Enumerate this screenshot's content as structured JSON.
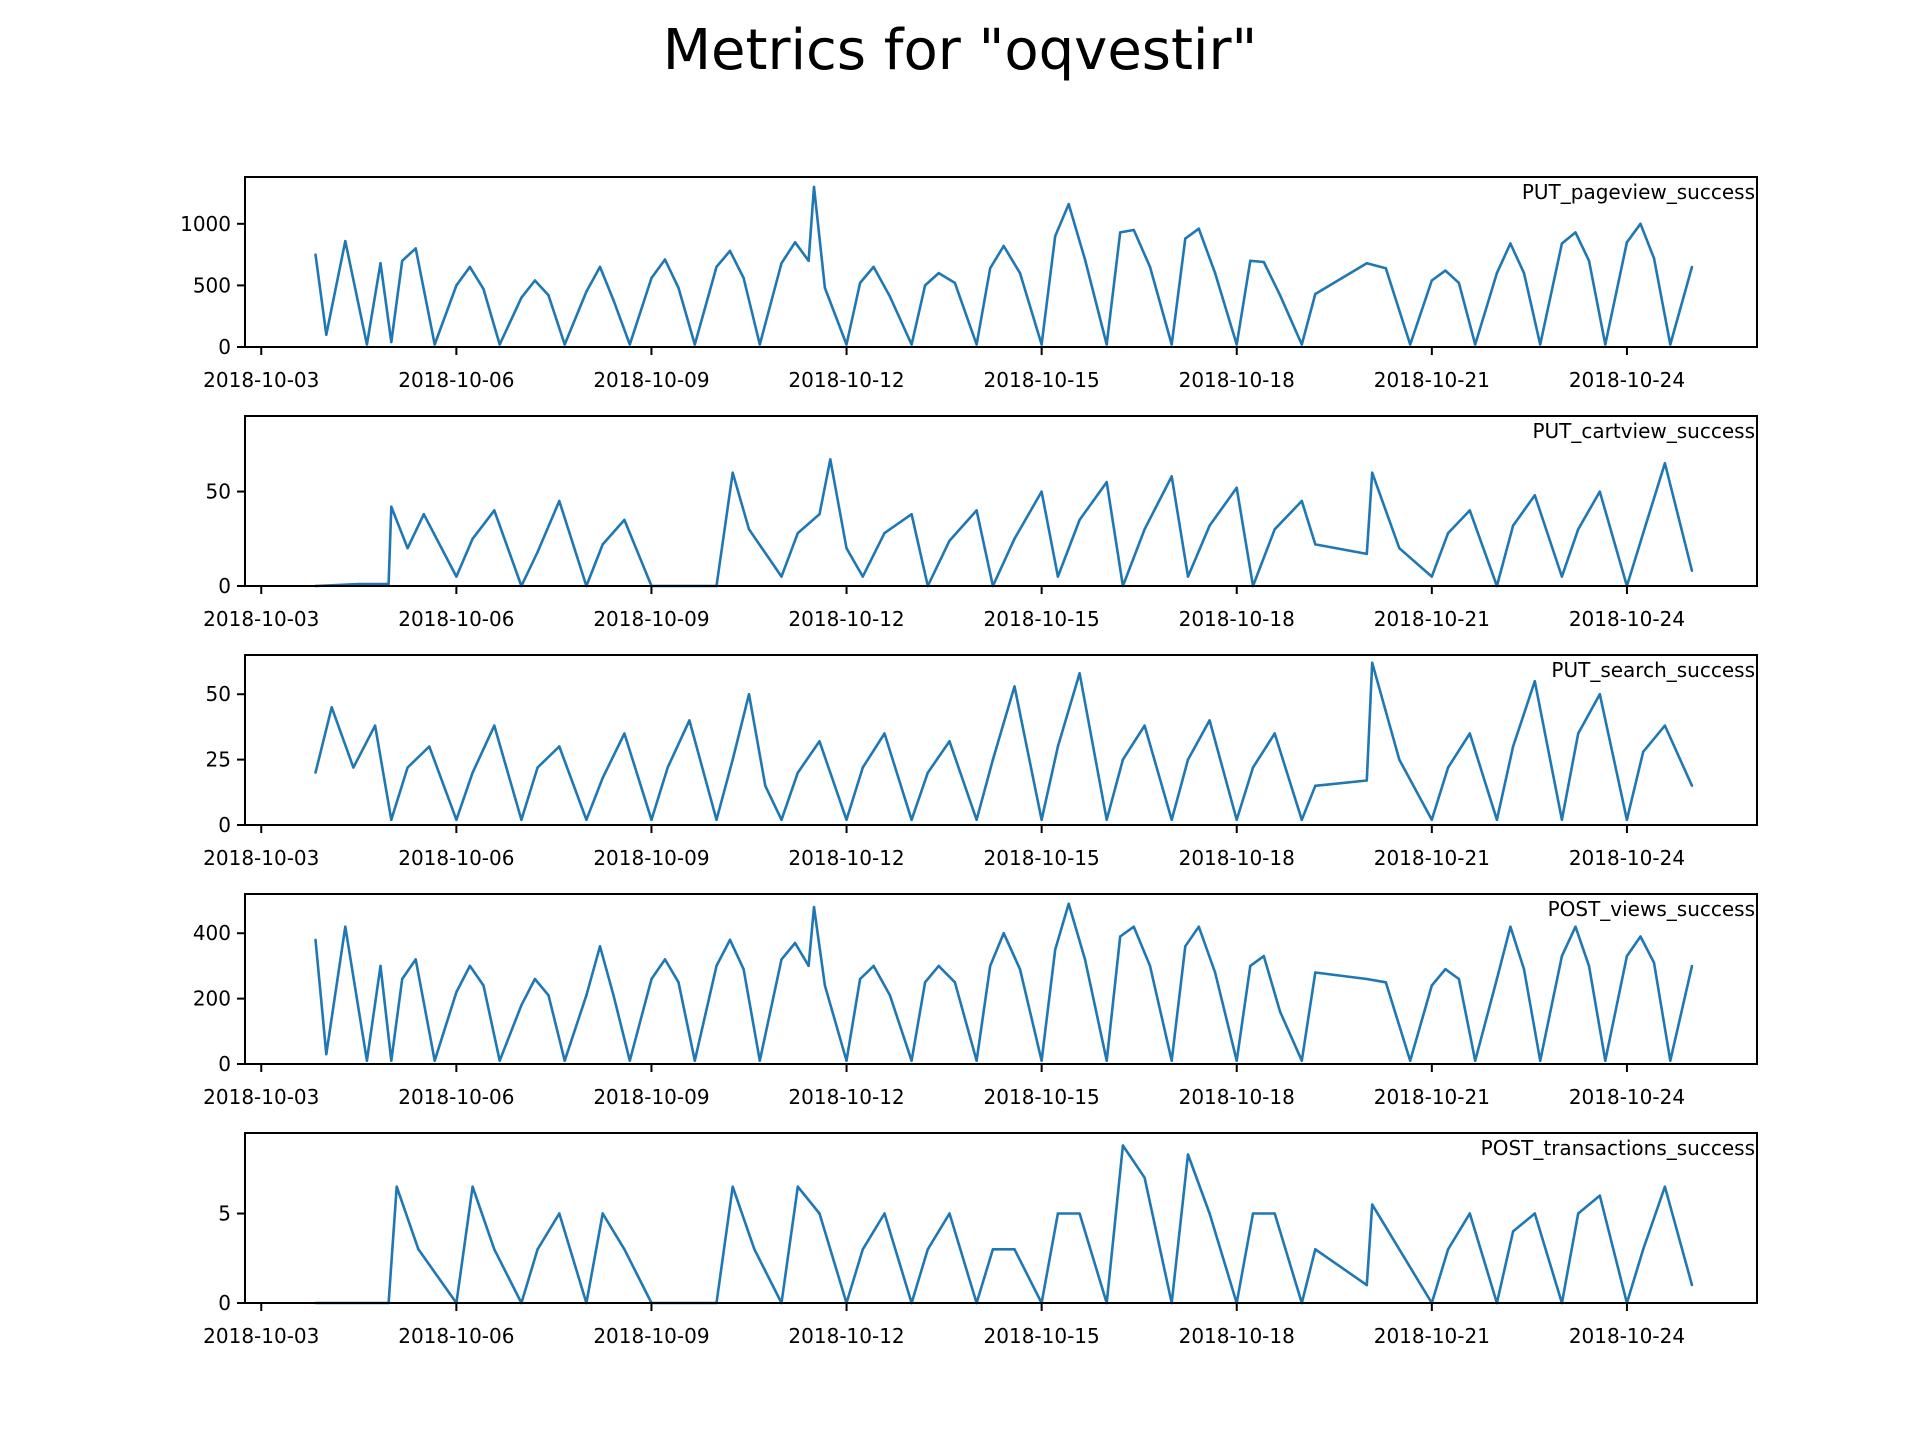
{
  "title": "Metrics for \"oqvestir\"",
  "x_ticks": [
    "2018-10-03",
    "2018-10-06",
    "2018-10-09",
    "2018-10-12",
    "2018-10-15",
    "2018-10-18",
    "2018-10-21",
    "2018-10-24"
  ],
  "colors": {
    "line": "#1f77b4",
    "axis": "#000000",
    "background": "#ffffff"
  },
  "chart_data": [
    {
      "type": "line",
      "series_label": "PUT_pageview_success",
      "x_type": "date",
      "x_start": "2018-10-03",
      "x_end": "2018-10-25",
      "x_ticks": [
        "2018-10-03",
        "2018-10-06",
        "2018-10-09",
        "2018-10-12",
        "2018-10-15",
        "2018-10-18",
        "2018-10-21",
        "2018-10-24"
      ],
      "y_ticks": [
        0,
        500,
        1000
      ],
      "ylim": [
        0,
        1380
      ],
      "xlim": [
        "2018-10-02T18:00",
        "2018-10-26T00:00"
      ],
      "x": [
        "2018-10-03T20:00",
        "2018-10-04T00:00",
        "2018-10-04T07:00",
        "2018-10-04T15:00",
        "2018-10-04T20:00",
        "2018-10-05T00:00",
        "2018-10-05T04:00",
        "2018-10-05T09:00",
        "2018-10-05T16:00",
        "2018-10-06T00:00",
        "2018-10-06T05:00",
        "2018-10-06T10:00",
        "2018-10-06T16:00",
        "2018-10-07T00:00",
        "2018-10-07T05:00",
        "2018-10-07T10:00",
        "2018-10-07T16:00",
        "2018-10-08T00:00",
        "2018-10-08T05:00",
        "2018-10-08T10:00",
        "2018-10-08T16:00",
        "2018-10-09T00:00",
        "2018-10-09T05:00",
        "2018-10-09T10:00",
        "2018-10-09T16:00",
        "2018-10-10T00:00",
        "2018-10-10T05:00",
        "2018-10-10T10:00",
        "2018-10-10T16:00",
        "2018-10-11T00:00",
        "2018-10-11T05:00",
        "2018-10-11T10:00",
        "2018-10-11T12:00",
        "2018-10-11T16:00",
        "2018-10-12T00:00",
        "2018-10-12T05:00",
        "2018-10-12T10:00",
        "2018-10-12T16:00",
        "2018-10-13T00:00",
        "2018-10-13T05:00",
        "2018-10-13T10:00",
        "2018-10-13T16:00",
        "2018-10-14T00:00",
        "2018-10-14T05:00",
        "2018-10-14T10:00",
        "2018-10-14T16:00",
        "2018-10-15T00:00",
        "2018-10-15T05:00",
        "2018-10-15T10:00",
        "2018-10-15T16:00",
        "2018-10-16T00:00",
        "2018-10-16T05:00",
        "2018-10-16T10:00",
        "2018-10-16T16:00",
        "2018-10-17T00:00",
        "2018-10-17T05:00",
        "2018-10-17T10:00",
        "2018-10-17T16:00",
        "2018-10-18T00:00",
        "2018-10-18T05:00",
        "2018-10-18T10:00",
        "2018-10-18T16:00",
        "2018-10-19T00:00",
        "2018-10-19T05:00",
        "2018-10-20T00:00",
        "2018-10-20T07:00",
        "2018-10-20T16:00",
        "2018-10-21T00:00",
        "2018-10-21T05:00",
        "2018-10-21T10:00",
        "2018-10-21T16:00",
        "2018-10-22T00:00",
        "2018-10-22T05:00",
        "2018-10-22T10:00",
        "2018-10-22T16:00",
        "2018-10-23T00:00",
        "2018-10-23T05:00",
        "2018-10-23T10:00",
        "2018-10-23T16:00",
        "2018-10-24T00:00",
        "2018-10-24T05:00",
        "2018-10-24T10:00",
        "2018-10-24T16:00",
        "2018-10-25T00:00"
      ],
      "y": [
        750,
        100,
        860,
        20,
        680,
        40,
        700,
        800,
        20,
        500,
        650,
        470,
        20,
        400,
        540,
        420,
        20,
        450,
        650,
        380,
        20,
        560,
        710,
        480,
        20,
        650,
        780,
        560,
        20,
        680,
        850,
        700,
        1300,
        480,
        20,
        520,
        650,
        410,
        20,
        500,
        600,
        520,
        20,
        640,
        820,
        600,
        20,
        900,
        1160,
        710,
        20,
        930,
        950,
        650,
        20,
        880,
        960,
        600,
        20,
        700,
        690,
        420,
        20,
        430,
        680,
        640,
        20,
        540,
        620,
        520,
        20,
        600,
        840,
        600,
        20,
        840,
        930,
        700,
        20,
        850,
        1000,
        720,
        20,
        650
      ]
    },
    {
      "type": "line",
      "series_label": "PUT_cartview_success",
      "x_type": "date",
      "x_start": "2018-10-03",
      "x_end": "2018-10-25",
      "x_ticks": [
        "2018-10-03",
        "2018-10-06",
        "2018-10-09",
        "2018-10-12",
        "2018-10-15",
        "2018-10-18",
        "2018-10-21",
        "2018-10-24"
      ],
      "y_ticks": [
        0,
        50
      ],
      "ylim": [
        0,
        90
      ],
      "xlim": [
        "2018-10-02T18:00",
        "2018-10-26T00:00"
      ],
      "x": [
        "2018-10-03T20:00",
        "2018-10-04T12:00",
        "2018-10-04T23:00",
        "2018-10-05T00:00",
        "2018-10-05T06:00",
        "2018-10-05T12:00",
        "2018-10-06T00:00",
        "2018-10-06T06:00",
        "2018-10-06T14:00",
        "2018-10-07T00:00",
        "2018-10-07T06:00",
        "2018-10-07T14:00",
        "2018-10-08T00:00",
        "2018-10-08T06:00",
        "2018-10-08T14:00",
        "2018-10-09T00:00",
        "2018-10-10T00:00",
        "2018-10-10T06:00",
        "2018-10-10T12:00",
        "2018-10-11T00:00",
        "2018-10-11T06:00",
        "2018-10-11T14:00",
        "2018-10-11T18:00",
        "2018-10-12T00:00",
        "2018-10-12T06:00",
        "2018-10-12T14:00",
        "2018-10-13T00:00",
        "2018-10-13T06:00",
        "2018-10-13T14:00",
        "2018-10-14T00:00",
        "2018-10-14T06:00",
        "2018-10-14T14:00",
        "2018-10-15T00:00",
        "2018-10-15T06:00",
        "2018-10-15T14:00",
        "2018-10-16T00:00",
        "2018-10-16T06:00",
        "2018-10-16T14:00",
        "2018-10-17T00:00",
        "2018-10-17T06:00",
        "2018-10-17T14:00",
        "2018-10-18T00:00",
        "2018-10-18T06:00",
        "2018-10-18T14:00",
        "2018-10-19T00:00",
        "2018-10-19T05:00",
        "2018-10-20T00:00",
        "2018-10-20T02:00",
        "2018-10-20T12:00",
        "2018-10-21T00:00",
        "2018-10-21T06:00",
        "2018-10-21T14:00",
        "2018-10-22T00:00",
        "2018-10-22T06:00",
        "2018-10-22T14:00",
        "2018-10-23T00:00",
        "2018-10-23T06:00",
        "2018-10-23T14:00",
        "2018-10-24T00:00",
        "2018-10-24T06:00",
        "2018-10-24T14:00",
        "2018-10-25T00:00"
      ],
      "y": [
        0,
        1,
        1,
        42,
        20,
        38,
        5,
        25,
        40,
        0,
        18,
        45,
        0,
        22,
        35,
        0,
        0,
        60,
        30,
        5,
        28,
        38,
        67,
        20,
        5,
        28,
        38,
        0,
        24,
        40,
        0,
        25,
        50,
        5,
        35,
        55,
        0,
        30,
        58,
        5,
        32,
        52,
        0,
        30,
        45,
        22,
        17,
        60,
        20,
        5,
        28,
        40,
        0,
        32,
        48,
        5,
        30,
        50,
        0,
        28,
        65,
        8
      ]
    },
    {
      "type": "line",
      "series_label": "PUT_search_success",
      "x_type": "date",
      "x_start": "2018-10-03",
      "x_end": "2018-10-25",
      "x_ticks": [
        "2018-10-03",
        "2018-10-06",
        "2018-10-09",
        "2018-10-12",
        "2018-10-15",
        "2018-10-18",
        "2018-10-21",
        "2018-10-24"
      ],
      "y_ticks": [
        0,
        25,
        50
      ],
      "ylim": [
        0,
        65
      ],
      "xlim": [
        "2018-10-02T18:00",
        "2018-10-26T00:00"
      ],
      "x": [
        "2018-10-03T20:00",
        "2018-10-04T02:00",
        "2018-10-04T10:00",
        "2018-10-04T18:00",
        "2018-10-05T00:00",
        "2018-10-05T06:00",
        "2018-10-05T14:00",
        "2018-10-06T00:00",
        "2018-10-06T06:00",
        "2018-10-06T14:00",
        "2018-10-07T00:00",
        "2018-10-07T06:00",
        "2018-10-07T14:00",
        "2018-10-08T00:00",
        "2018-10-08T06:00",
        "2018-10-08T14:00",
        "2018-10-09T00:00",
        "2018-10-09T06:00",
        "2018-10-09T14:00",
        "2018-10-10T00:00",
        "2018-10-10T06:00",
        "2018-10-10T12:00",
        "2018-10-10T18:00",
        "2018-10-11T00:00",
        "2018-10-11T06:00",
        "2018-10-11T14:00",
        "2018-10-12T00:00",
        "2018-10-12T06:00",
        "2018-10-12T14:00",
        "2018-10-13T00:00",
        "2018-10-13T06:00",
        "2018-10-13T14:00",
        "2018-10-14T00:00",
        "2018-10-14T06:00",
        "2018-10-14T14:00",
        "2018-10-15T00:00",
        "2018-10-15T06:00",
        "2018-10-15T14:00",
        "2018-10-16T00:00",
        "2018-10-16T06:00",
        "2018-10-16T14:00",
        "2018-10-17T00:00",
        "2018-10-17T06:00",
        "2018-10-17T14:00",
        "2018-10-18T00:00",
        "2018-10-18T06:00",
        "2018-10-18T14:00",
        "2018-10-19T00:00",
        "2018-10-19T05:00",
        "2018-10-20T00:00",
        "2018-10-20T02:00",
        "2018-10-20T12:00",
        "2018-10-21T00:00",
        "2018-10-21T06:00",
        "2018-10-21T14:00",
        "2018-10-22T00:00",
        "2018-10-22T06:00",
        "2018-10-22T14:00",
        "2018-10-23T00:00",
        "2018-10-23T06:00",
        "2018-10-23T14:00",
        "2018-10-24T00:00",
        "2018-10-24T06:00",
        "2018-10-24T14:00",
        "2018-10-25T00:00"
      ],
      "y": [
        20,
        45,
        22,
        38,
        2,
        22,
        30,
        2,
        20,
        38,
        2,
        22,
        30,
        2,
        18,
        35,
        2,
        22,
        40,
        2,
        25,
        50,
        15,
        2,
        20,
        32,
        2,
        22,
        35,
        2,
        20,
        32,
        2,
        25,
        53,
        2,
        30,
        58,
        2,
        25,
        38,
        2,
        25,
        40,
        2,
        22,
        35,
        2,
        15,
        17,
        62,
        25,
        2,
        22,
        35,
        2,
        30,
        55,
        2,
        35,
        50,
        2,
        28,
        38,
        15
      ]
    },
    {
      "type": "line",
      "series_label": "POST_views_success",
      "x_type": "date",
      "x_start": "2018-10-03",
      "x_end": "2018-10-25",
      "x_ticks": [
        "2018-10-03",
        "2018-10-06",
        "2018-10-09",
        "2018-10-12",
        "2018-10-15",
        "2018-10-18",
        "2018-10-21",
        "2018-10-24"
      ],
      "y_ticks": [
        0,
        200,
        400
      ],
      "ylim": [
        0,
        520
      ],
      "xlim": [
        "2018-10-02T18:00",
        "2018-10-26T00:00"
      ],
      "x": [
        "2018-10-03T20:00",
        "2018-10-04T00:00",
        "2018-10-04T07:00",
        "2018-10-04T15:00",
        "2018-10-04T20:00",
        "2018-10-05T00:00",
        "2018-10-05T04:00",
        "2018-10-05T09:00",
        "2018-10-05T16:00",
        "2018-10-06T00:00",
        "2018-10-06T05:00",
        "2018-10-06T10:00",
        "2018-10-06T16:00",
        "2018-10-07T00:00",
        "2018-10-07T05:00",
        "2018-10-07T10:00",
        "2018-10-07T16:00",
        "2018-10-08T00:00",
        "2018-10-08T05:00",
        "2018-10-08T10:00",
        "2018-10-08T16:00",
        "2018-10-09T00:00",
        "2018-10-09T05:00",
        "2018-10-09T10:00",
        "2018-10-09T16:00",
        "2018-10-10T00:00",
        "2018-10-10T05:00",
        "2018-10-10T10:00",
        "2018-10-10T16:00",
        "2018-10-11T00:00",
        "2018-10-11T05:00",
        "2018-10-11T10:00",
        "2018-10-11T12:00",
        "2018-10-11T16:00",
        "2018-10-12T00:00",
        "2018-10-12T05:00",
        "2018-10-12T10:00",
        "2018-10-12T16:00",
        "2018-10-13T00:00",
        "2018-10-13T05:00",
        "2018-10-13T10:00",
        "2018-10-13T16:00",
        "2018-10-14T00:00",
        "2018-10-14T05:00",
        "2018-10-14T10:00",
        "2018-10-14T16:00",
        "2018-10-15T00:00",
        "2018-10-15T05:00",
        "2018-10-15T10:00",
        "2018-10-15T16:00",
        "2018-10-16T00:00",
        "2018-10-16T05:00",
        "2018-10-16T10:00",
        "2018-10-16T16:00",
        "2018-10-17T00:00",
        "2018-10-17T05:00",
        "2018-10-17T10:00",
        "2018-10-17T16:00",
        "2018-10-18T00:00",
        "2018-10-18T05:00",
        "2018-10-18T10:00",
        "2018-10-18T16:00",
        "2018-10-19T00:00",
        "2018-10-19T05:00",
        "2018-10-20T00:00",
        "2018-10-20T07:00",
        "2018-10-20T16:00",
        "2018-10-21T00:00",
        "2018-10-21T05:00",
        "2018-10-21T10:00",
        "2018-10-21T16:00",
        "2018-10-22T00:00",
        "2018-10-22T05:00",
        "2018-10-22T10:00",
        "2018-10-22T16:00",
        "2018-10-23T00:00",
        "2018-10-23T05:00",
        "2018-10-23T10:00",
        "2018-10-23T16:00",
        "2018-10-24T00:00",
        "2018-10-24T05:00",
        "2018-10-24T10:00",
        "2018-10-24T16:00",
        "2018-10-25T00:00"
      ],
      "y": [
        380,
        30,
        420,
        10,
        300,
        10,
        260,
        320,
        10,
        220,
        300,
        240,
        10,
        180,
        260,
        210,
        10,
        210,
        360,
        210,
        10,
        260,
        320,
        250,
        10,
        300,
        380,
        290,
        10,
        320,
        370,
        300,
        480,
        240,
        10,
        260,
        300,
        210,
        10,
        250,
        300,
        250,
        10,
        300,
        400,
        290,
        10,
        350,
        490,
        320,
        10,
        390,
        420,
        300,
        10,
        360,
        420,
        280,
        10,
        300,
        330,
        160,
        10,
        280,
        260,
        250,
        10,
        240,
        290,
        260,
        10,
        260,
        420,
        290,
        10,
        330,
        420,
        300,
        10,
        330,
        390,
        310,
        10,
        300
      ]
    },
    {
      "type": "line",
      "series_label": "POST_transactions_success",
      "x_type": "date",
      "x_start": "2018-10-03",
      "x_end": "2018-10-25",
      "x_ticks": [
        "2018-10-03",
        "2018-10-06",
        "2018-10-09",
        "2018-10-12",
        "2018-10-15",
        "2018-10-18",
        "2018-10-21",
        "2018-10-24"
      ],
      "y_ticks": [
        0,
        5
      ],
      "ylim": [
        0,
        9.5
      ],
      "xlim": [
        "2018-10-02T18:00",
        "2018-10-26T00:00"
      ],
      "x": [
        "2018-10-03T20:00",
        "2018-10-04T23:00",
        "2018-10-05T02:00",
        "2018-10-05T10:00",
        "2018-10-06T00:00",
        "2018-10-06T06:00",
        "2018-10-06T14:00",
        "2018-10-07T00:00",
        "2018-10-07T06:00",
        "2018-10-07T14:00",
        "2018-10-08T00:00",
        "2018-10-08T06:00",
        "2018-10-08T14:00",
        "2018-10-09T00:00",
        "2018-10-10T00:00",
        "2018-10-10T06:00",
        "2018-10-10T14:00",
        "2018-10-11T00:00",
        "2018-10-11T06:00",
        "2018-10-11T14:00",
        "2018-10-12T00:00",
        "2018-10-12T06:00",
        "2018-10-12T14:00",
        "2018-10-13T00:00",
        "2018-10-13T06:00",
        "2018-10-13T14:00",
        "2018-10-14T00:00",
        "2018-10-14T06:00",
        "2018-10-14T14:00",
        "2018-10-15T00:00",
        "2018-10-15T06:00",
        "2018-10-15T14:00",
        "2018-10-16T00:00",
        "2018-10-16T06:00",
        "2018-10-16T14:00",
        "2018-10-17T00:00",
        "2018-10-17T06:00",
        "2018-10-17T14:00",
        "2018-10-18T00:00",
        "2018-10-18T06:00",
        "2018-10-18T14:00",
        "2018-10-19T00:00",
        "2018-10-19T05:00",
        "2018-10-20T00:00",
        "2018-10-20T02:00",
        "2018-10-20T12:00",
        "2018-10-21T00:00",
        "2018-10-21T06:00",
        "2018-10-21T14:00",
        "2018-10-22T00:00",
        "2018-10-22T06:00",
        "2018-10-22T14:00",
        "2018-10-23T00:00",
        "2018-10-23T06:00",
        "2018-10-23T14:00",
        "2018-10-24T00:00",
        "2018-10-24T06:00",
        "2018-10-24T14:00",
        "2018-10-25T00:00"
      ],
      "y": [
        0,
        0,
        6.5,
        3,
        0,
        6.5,
        3,
        0,
        3,
        5,
        0,
        5,
        3,
        0,
        0,
        6.5,
        3,
        0,
        6.5,
        5,
        0,
        3,
        5,
        0,
        3,
        5,
        0,
        3,
        3,
        0,
        5,
        5,
        0,
        8.8,
        7,
        0,
        8.3,
        5,
        0,
        5,
        5,
        0,
        3,
        1,
        5.5,
        3,
        0,
        3,
        5,
        0,
        4,
        5,
        0,
        5,
        6,
        0,
        3,
        6.5,
        1
      ]
    }
  ]
}
